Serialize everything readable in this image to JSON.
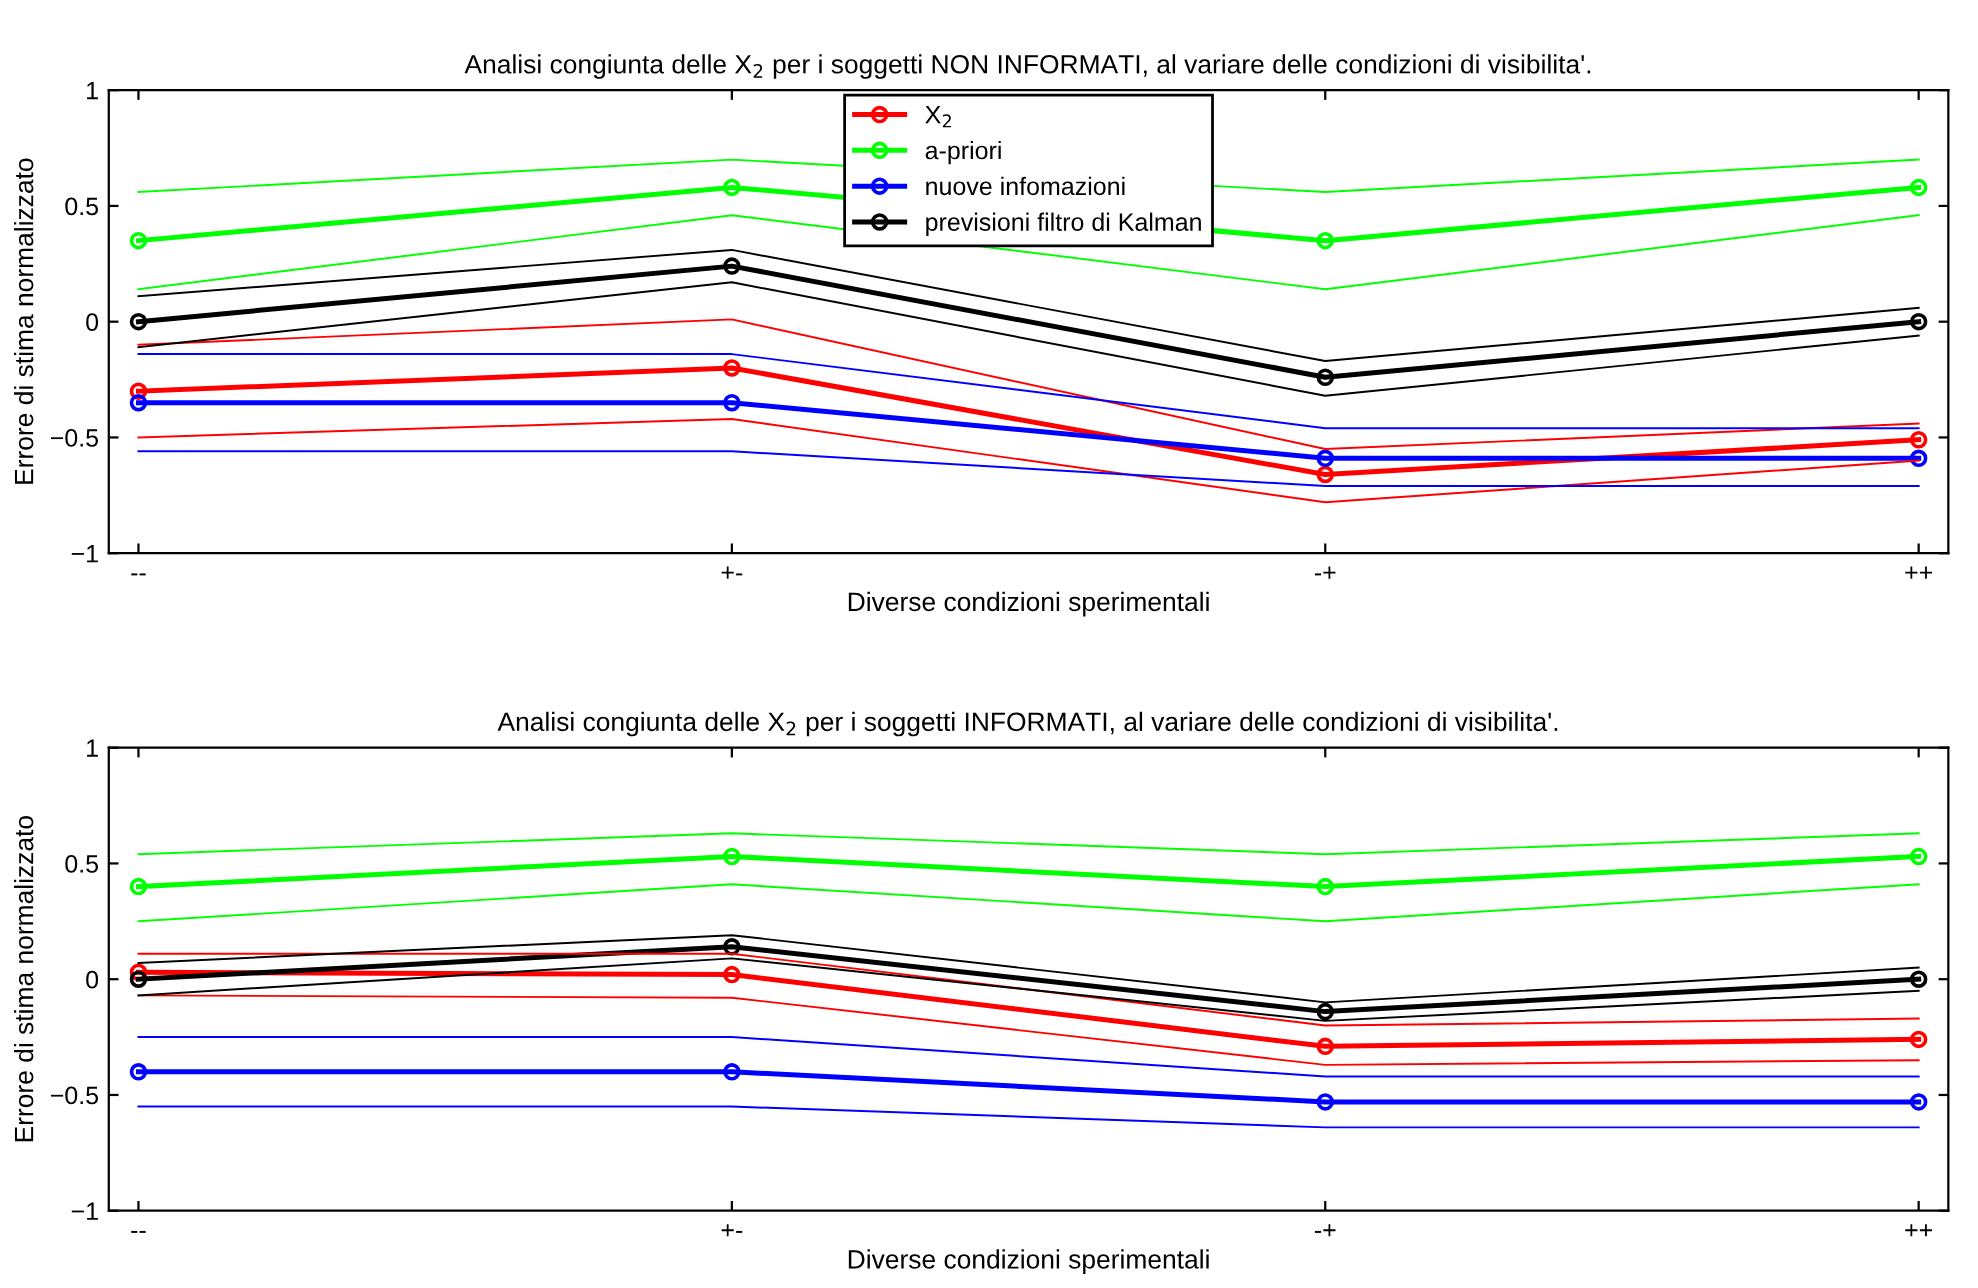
{
  "chart_data": [
    {
      "type": "line",
      "title": "Analisi congiunta delle X$_{2}$ per i soggetti NON INFORMATI, al variare delle condizioni di visibilita'.",
      "xlabel": "Diverse condizioni sperimentali",
      "ylabel": "Errore di stima normalizzato",
      "categories": [
        "--",
        "+-",
        "-+",
        "++"
      ],
      "ylim": [
        -1,
        1
      ],
      "yticks": [
        -1,
        -0.5,
        0,
        0.5,
        1
      ],
      "marker": "circle",
      "legend": "top",
      "grid": false,
      "series": [
        {
          "name": "X$_{2}$",
          "color": "#ff0000",
          "values": [
            -0.3,
            -0.2,
            -0.66,
            -0.51
          ]
        },
        {
          "name": "a-priori",
          "color": "#00ff00",
          "values": [
            0.35,
            0.58,
            0.35,
            0.58
          ]
        },
        {
          "name": "nuove infomazioni",
          "color": "#0000ff",
          "values": [
            -0.35,
            -0.35,
            -0.59,
            -0.59
          ]
        },
        {
          "name": "previsioni filtro di Kalman",
          "color": "#000000",
          "values": [
            0,
            0.24,
            -0.24,
            0
          ]
        },
        {
          "color": "#ff0000",
          "marker": "none",
          "values": [
            -0.5,
            -0.42,
            -0.78,
            -0.6
          ]
        },
        {
          "color": "#ff0000",
          "marker": "none",
          "values": [
            -0.1,
            0.01,
            -0.55,
            -0.44
          ]
        },
        {
          "color": "#00ff00",
          "marker": "none",
          "values": [
            0.14,
            0.46,
            0.14,
            0.46
          ]
        },
        {
          "color": "#00ff00",
          "marker": "none",
          "values": [
            0.56,
            0.7,
            0.56,
            0.7
          ]
        },
        {
          "color": "#0000ff",
          "marker": "none",
          "values": [
            -0.56,
            -0.56,
            -0.71,
            -0.71
          ]
        },
        {
          "color": "#0000ff",
          "marker": "none",
          "values": [
            -0.14,
            -0.14,
            -0.46,
            -0.46
          ]
        },
        {
          "color": "#000000",
          "marker": "none",
          "values": [
            -0.11,
            0.17,
            -0.32,
            -0.06
          ]
        },
        {
          "color": "#000000",
          "marker": "none",
          "values": [
            0.11,
            0.31,
            -0.17,
            0.06
          ]
        }
      ]
    },
    {
      "type": "line",
      "title": "Analisi congiunta delle X$_{2}$ per i soggetti INFORMATI, al variare delle condizioni di visibilita'.",
      "xlabel": "Diverse condizioni sperimentali",
      "ylabel": "Errore di stima normalizzato",
      "categories": [
        "--",
        "+-",
        "-+",
        "++"
      ],
      "ylim": [
        -1,
        1
      ],
      "yticks": [
        -1,
        -0.5,
        0,
        0.5,
        1
      ],
      "marker": "circle",
      "grid": false,
      "series": [
        {
          "color": "#ff0000",
          "values": [
            0.03,
            0.02,
            -0.29,
            -0.26
          ]
        },
        {
          "color": "#00ff00",
          "values": [
            0.4,
            0.53,
            0.4,
            0.53
          ]
        },
        {
          "color": "#0000ff",
          "values": [
            -0.4,
            -0.4,
            -0.53,
            -0.53
          ]
        },
        {
          "color": "#000000",
          "values": [
            0,
            0.14,
            -0.14,
            0
          ]
        },
        {
          "color": "#ff0000",
          "marker": "none",
          "values": [
            -0.07,
            -0.08,
            -0.37,
            -0.35
          ]
        },
        {
          "color": "#ff0000",
          "marker": "none",
          "values": [
            0.11,
            0.11,
            -0.2,
            -0.17
          ]
        },
        {
          "color": "#00ff00",
          "marker": "none",
          "values": [
            0.25,
            0.41,
            0.25,
            0.41
          ]
        },
        {
          "color": "#00ff00",
          "marker": "none",
          "values": [
            0.54,
            0.63,
            0.54,
            0.63
          ]
        },
        {
          "color": "#0000ff",
          "marker": "none",
          "values": [
            -0.55,
            -0.55,
            -0.64,
            -0.64
          ]
        },
        {
          "color": "#0000ff",
          "marker": "none",
          "values": [
            -0.25,
            -0.25,
            -0.42,
            -0.42
          ]
        },
        {
          "color": "#000000",
          "marker": "none",
          "values": [
            -0.07,
            0.09,
            -0.18,
            -0.05
          ]
        },
        {
          "color": "#000000",
          "marker": "none",
          "values": [
            0.07,
            0.19,
            -0.1,
            0.05
          ]
        }
      ]
    }
  ]
}
